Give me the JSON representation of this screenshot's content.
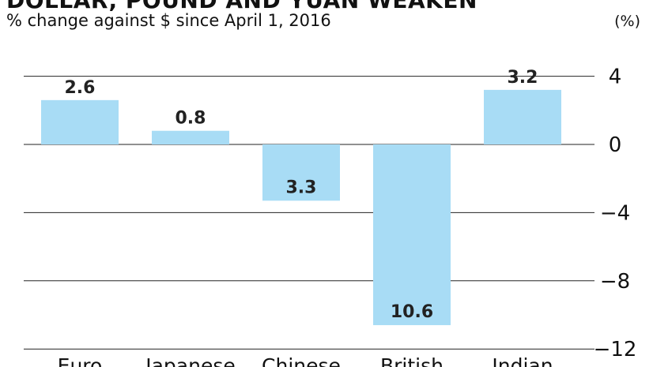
{
  "header": {
    "title": "DOLLAR, POUND AND YUAN WEAKEN",
    "subtitle": "% change against $ since April 1, 2016",
    "unit": "(%)"
  },
  "chart_data": {
    "type": "bar",
    "title": "DOLLAR, POUND AND YUAN WEAKEN",
    "subtitle": "% change against $ since April 1, 2016",
    "ylabel": "(%)",
    "xlabel": "",
    "categories": [
      "Euro",
      "Japanese",
      "Chinese",
      "British",
      "Indian"
    ],
    "values": [
      2.6,
      0.8,
      -3.3,
      -10.6,
      3.2
    ],
    "data_labels": [
      "2.6",
      "0.8",
      "3.3",
      "10.6",
      "3.2"
    ],
    "yticks": [
      4,
      0,
      -4,
      -8,
      -12
    ],
    "ytick_labels": [
      "4",
      "0",
      "−4",
      "−8",
      "−12"
    ],
    "ylim": [
      -12,
      4
    ],
    "grid": true,
    "legend": "none",
    "bar_color": "#a8dcf5",
    "axis_side": "right"
  }
}
